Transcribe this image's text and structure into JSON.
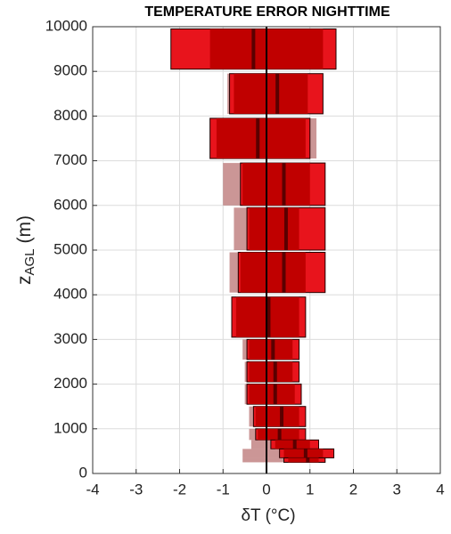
{
  "chart_data": {
    "type": "box",
    "title": "TEMPERATURE ERROR NIGHTTIME",
    "xlabel": "δT (°C)",
    "ylabel": [
      "z",
      "AGL",
      "(m)"
    ],
    "xlim": [
      -4,
      4
    ],
    "xticks": [
      -4,
      -3,
      -2,
      -1,
      0,
      1,
      2,
      3,
      4
    ],
    "ylim": [
      0,
      10000
    ],
    "yticks": [
      0,
      1000,
      2000,
      3000,
      4000,
      5000,
      6000,
      7000,
      8000,
      9000,
      10000
    ],
    "grid": true,
    "zero_line": true,
    "colors": {
      "outer": "#e8141c",
      "inner": "#c00000",
      "median": "#5a0000",
      "reference": "#a85050"
    },
    "levels": [
      {
        "z": [
          9050,
          9950
        ],
        "min": -2.2,
        "max": 1.6,
        "q1": -1.3,
        "q3": 1.3,
        "median": -0.3,
        "ref_min": -2.2,
        "ref_max": 1.6
      },
      {
        "z": [
          8050,
          8950
        ],
        "min": -0.85,
        "max": 1.3,
        "q1": -0.75,
        "q3": 0.95,
        "median": 0.25,
        "ref_min": -0.9,
        "ref_max": 1.3
      },
      {
        "z": [
          7050,
          7950
        ],
        "min": -1.3,
        "max": 1.0,
        "q1": -1.15,
        "q3": 0.9,
        "median": -0.2,
        "ref_min": -1.3,
        "ref_max": 1.15
      },
      {
        "z": [
          6000,
          6950
        ],
        "min": -0.6,
        "max": 1.35,
        "q1": -0.55,
        "q3": 1.0,
        "median": 0.4,
        "ref_min": -1.0,
        "ref_max": 1.35
      },
      {
        "z": [
          5000,
          5950
        ],
        "min": -0.45,
        "max": 1.35,
        "q1": -0.4,
        "q3": 0.75,
        "median": 0.45,
        "ref_min": -0.75,
        "ref_max": 1.35
      },
      {
        "z": [
          4050,
          4950
        ],
        "min": -0.65,
        "max": 1.35,
        "q1": -0.6,
        "q3": 0.9,
        "median": 0.4,
        "ref_min": -0.85,
        "ref_max": 1.35
      },
      {
        "z": [
          3050,
          3950
        ],
        "min": -0.8,
        "max": 0.9,
        "q1": -0.7,
        "q3": 0.75,
        "median": 0.05,
        "ref_min": -0.8,
        "ref_max": 0.9
      },
      {
        "z": [
          2550,
          3000
        ],
        "min": -0.45,
        "max": 0.75,
        "q1": -0.4,
        "q3": 0.6,
        "median": 0.15,
        "ref_min": -0.55,
        "ref_max": 0.75
      },
      {
        "z": [
          2050,
          2500
        ],
        "min": -0.45,
        "max": 0.75,
        "q1": -0.4,
        "q3": 0.6,
        "median": 0.2,
        "ref_min": -0.5,
        "ref_max": 0.75
      },
      {
        "z": [
          1550,
          2000
        ],
        "min": -0.45,
        "max": 0.8,
        "q1": -0.4,
        "q3": 0.65,
        "median": 0.2,
        "ref_min": -0.5,
        "ref_max": 0.8
      },
      {
        "z": [
          1050,
          1500
        ],
        "min": -0.3,
        "max": 0.9,
        "q1": -0.25,
        "q3": 0.75,
        "median": 0.35,
        "ref_min": -0.4,
        "ref_max": 0.9
      },
      {
        "z": [
          750,
          1000
        ],
        "min": -0.25,
        "max": 0.9,
        "q1": -0.2,
        "q3": 0.75,
        "median": 0.3,
        "ref_min": -0.4,
        "ref_max": 0.9
      },
      {
        "z": [
          550,
          750
        ],
        "min": 0.1,
        "max": 1.2,
        "q1": 0.2,
        "q3": 1.0,
        "median": 0.65,
        "ref_min": -0.35,
        "ref_max": 1.2
      },
      {
        "z": [
          350,
          550
        ],
        "min": 0.3,
        "max": 1.55,
        "q1": 0.4,
        "q3": 1.3,
        "median": 0.9,
        "ref_min": -0.55,
        "ref_max": 1.55
      },
      {
        "z": [
          250,
          350
        ],
        "min": 0.4,
        "max": 1.35,
        "q1": 0.5,
        "q3": 1.2,
        "median": 0.95,
        "ref_min": -0.55,
        "ref_max": 1.35
      }
    ]
  }
}
